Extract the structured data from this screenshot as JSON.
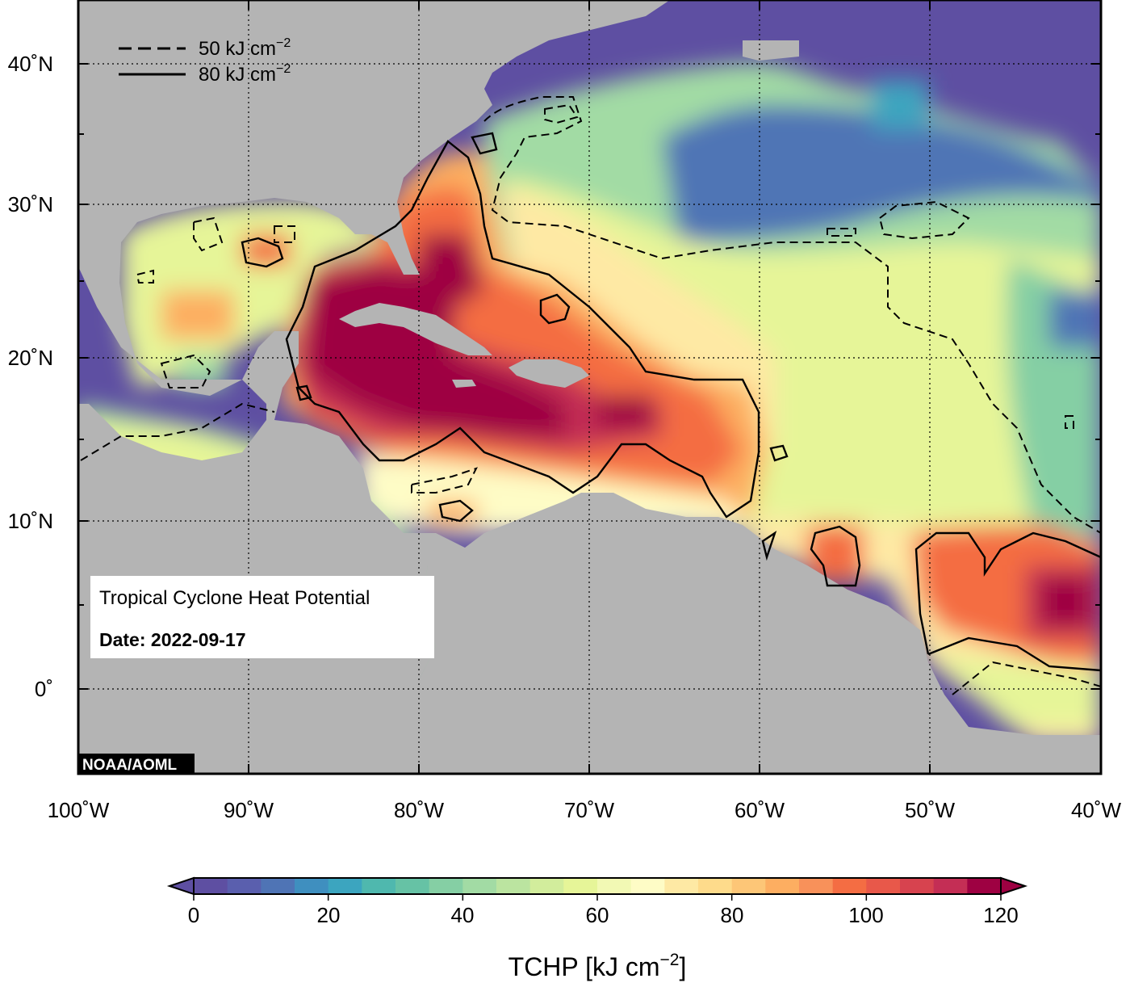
{
  "credit": "NOAA/AOML",
  "info_box": {
    "title": "Tropical Cyclone Heat Potential",
    "date_label": "Date: 2022-09-17"
  },
  "legend": [
    {
      "label": "50 kJ cm",
      "superscript": "−2",
      "line": "dashed"
    },
    {
      "label": "80 kJ cm",
      "superscript": "−2",
      "line": "solid"
    }
  ],
  "x_axis_ticks": [
    "100˚W",
    "90˚W",
    "80˚W",
    "70˚W",
    "60˚W",
    "50˚W",
    "40˚W"
  ],
  "y_axis_ticks": [
    "40˚N",
    "30˚N",
    "20˚N",
    "10˚N",
    "0˚"
  ],
  "colorbar": {
    "title_text": "TCHP [kJ cm",
    "title_superscript": "−2",
    "title_close": "]",
    "tick_labels": [
      "0",
      "20",
      "40",
      "60",
      "80",
      "100",
      "120"
    ],
    "min": 0,
    "max": 120,
    "step": 5,
    "colors": [
      "#5e4fa2",
      "#5a5fae",
      "#4f74b5",
      "#3f8fbf",
      "#3ca5bf",
      "#4fb8ae",
      "#66c2a5",
      "#85cfa4",
      "#a2dba4",
      "#bbe4a0",
      "#d2ed9c",
      "#e6f598",
      "#f2f9b4",
      "#fefcc6",
      "#fee9a4",
      "#fedb8b",
      "#fdc677",
      "#fdae61",
      "#f8915a",
      "#f46d43",
      "#e8584a",
      "#d7434f",
      "#c42e55",
      "#9e0142"
    ],
    "under_color": "#5e4fa2",
    "over_color": "#9e0142"
  },
  "map": {
    "lon_min": -100,
    "lon_max": -40,
    "lat_min": -5,
    "lat_max": 45,
    "grid_lons": [
      -90,
      -80,
      -70,
      -60,
      -50
    ],
    "grid_lats": [
      0,
      10,
      20,
      30,
      40
    ],
    "land_color": "#b4b4b4",
    "ocean_background_color": "#5e4fa2"
  }
}
